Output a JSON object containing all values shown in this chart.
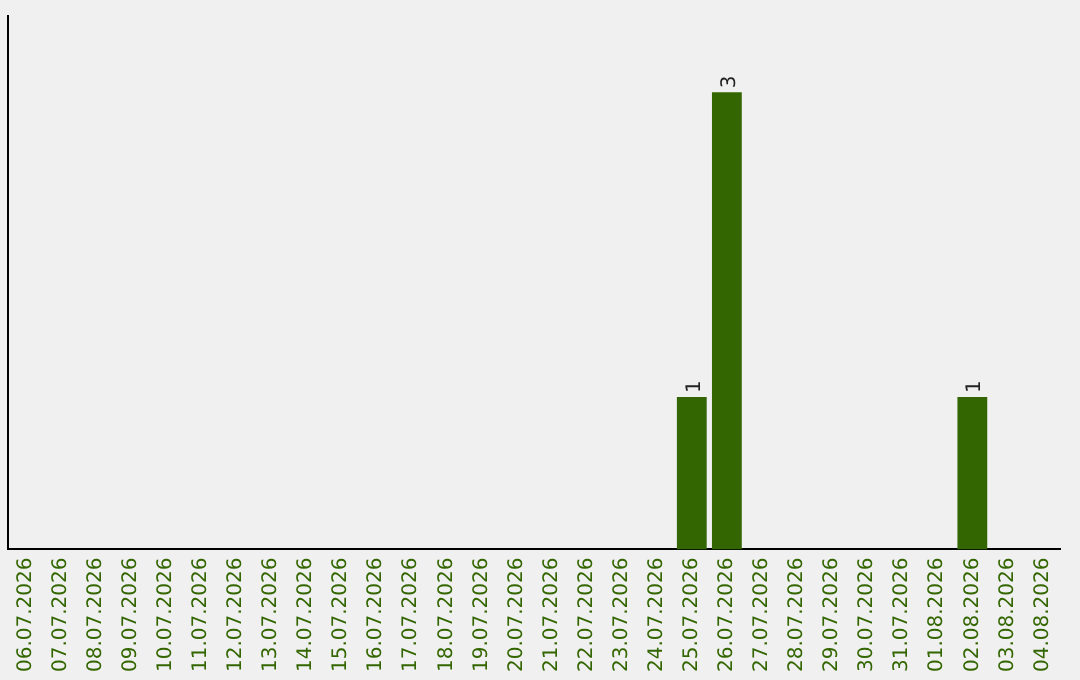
{
  "chart_data": {
    "type": "bar",
    "categories": [
      "06.07.2026",
      "07.07.2026",
      "08.07.2026",
      "09.07.2026",
      "10.07.2026",
      "11.07.2026",
      "12.07.2026",
      "13.07.2026",
      "14.07.2026",
      "15.07.2026",
      "16.07.2026",
      "17.07.2026",
      "18.07.2026",
      "19.07.2026",
      "20.07.2026",
      "21.07.2026",
      "22.07.2026",
      "23.07.2026",
      "24.07.2026",
      "25.07.2026",
      "26.07.2026",
      "27.07.2026",
      "28.07.2026",
      "29.07.2026",
      "30.07.2026",
      "31.07.2026",
      "01.08.2026",
      "02.08.2026",
      "03.08.2026",
      "04.08.2026"
    ],
    "values": [
      null,
      null,
      null,
      null,
      null,
      null,
      null,
      null,
      null,
      null,
      null,
      null,
      null,
      null,
      null,
      null,
      null,
      null,
      null,
      1,
      3,
      null,
      null,
      null,
      null,
      null,
      null,
      1,
      null,
      null
    ],
    "value_labels": [
      null,
      null,
      null,
      null,
      null,
      null,
      null,
      null,
      null,
      null,
      null,
      null,
      null,
      null,
      null,
      null,
      null,
      null,
      null,
      "1",
      "3",
      null,
      null,
      null,
      null,
      null,
      null,
      "1",
      null,
      null
    ],
    "color": "#336600",
    "grid": false,
    "legend": false
  }
}
